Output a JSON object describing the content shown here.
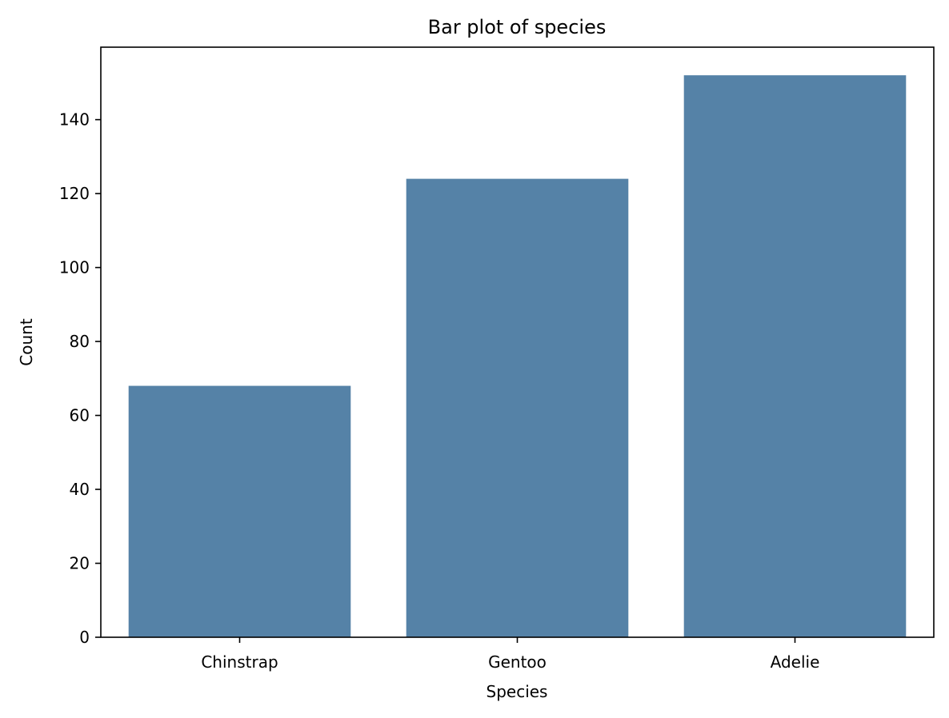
{
  "chart_data": {
    "type": "bar",
    "title": "Bar plot of species",
    "xlabel": "Species",
    "ylabel": "Count",
    "categories": [
      "Chinstrap",
      "Gentoo",
      "Adelie"
    ],
    "values": [
      68,
      124,
      152
    ],
    "ylim": [
      0,
      159.6
    ],
    "yticks": [
      0,
      20,
      40,
      60,
      80,
      100,
      120,
      140
    ],
    "grid": false,
    "legend": "none",
    "bar_color": "#5582a7"
  }
}
